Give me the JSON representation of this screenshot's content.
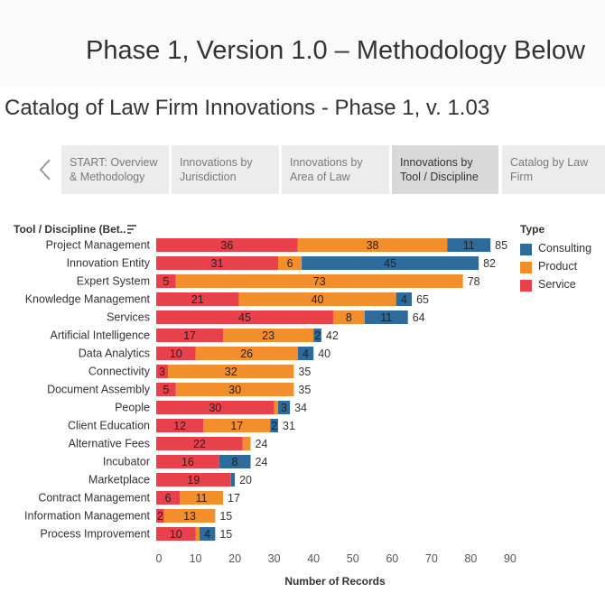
{
  "header": {
    "phase_title": "Phase 1, Version 1.0 – Methodology Below",
    "catalog_title": "Catalog of Law Firm Innovations - Phase 1, v. 1.03"
  },
  "tabs": [
    {
      "line1": "START: Overview",
      "line2": "& Methodology",
      "active": false
    },
    {
      "line1": "Innovations by",
      "line2": "Jurisdiction",
      "active": false
    },
    {
      "line1": "Innovations by",
      "line2": "Area of Law",
      "active": false
    },
    {
      "line1": "Innovations by",
      "line2": "Tool / Discipline",
      "active": true
    },
    {
      "line1": "Catalog by Law",
      "line2": "Firm",
      "active": false
    }
  ],
  "legend": {
    "title": "Type",
    "items": [
      {
        "label": "Consulting",
        "color": "#2f6b9a"
      },
      {
        "label": "Product",
        "color": "#f28e2b"
      },
      {
        "label": "Service",
        "color": "#e8414b"
      }
    ]
  },
  "chart_data": {
    "type": "bar",
    "orientation": "horizontal",
    "stacked": true,
    "row_header": "Tool / Discipline (Bet..",
    "xlabel": "Number of Records",
    "xlim": [
      0,
      90
    ],
    "xticks": [
      0,
      10,
      20,
      30,
      40,
      50,
      60,
      70,
      80,
      90
    ],
    "categories": [
      "Project Management",
      "Innovation Entity",
      "Expert System",
      "Knowledge Management",
      "Services",
      "Artificial Intelligence",
      "Data Analytics",
      "Connectivity",
      "Document Assembly",
      "People",
      "Client Education",
      "Alternative Fees",
      "Incubator",
      "Marketplace",
      "Contract Management",
      "Information Management",
      "Process Improvement"
    ],
    "series": [
      {
        "name": "Service",
        "color": "#e8414b",
        "values": [
          36,
          31,
          5,
          21,
          45,
          17,
          10,
          3,
          5,
          30,
          12,
          22,
          16,
          19,
          6,
          2,
          10
        ]
      },
      {
        "name": "Product",
        "color": "#f28e2b",
        "values": [
          38,
          6,
          73,
          40,
          8,
          23,
          26,
          32,
          30,
          1,
          17,
          2,
          0,
          0,
          11,
          13,
          1
        ]
      },
      {
        "name": "Consulting",
        "color": "#2f6b9a",
        "values": [
          11,
          45,
          0,
          4,
          11,
          2,
          4,
          0,
          0,
          3,
          2,
          0,
          8,
          1,
          0,
          0,
          4
        ]
      }
    ],
    "totals": [
      85,
      82,
      78,
      65,
      64,
      42,
      40,
      35,
      35,
      34,
      31,
      24,
      24,
      20,
      17,
      15,
      15
    ],
    "segment_labels": [
      [
        "36",
        "38",
        "11"
      ],
      [
        "31",
        "6",
        "45"
      ],
      [
        "5",
        "73",
        ""
      ],
      [
        "21",
        "40",
        "4"
      ],
      [
        "45",
        "8",
        "11"
      ],
      [
        "17",
        "23",
        "2"
      ],
      [
        "10",
        "26",
        "4"
      ],
      [
        "3",
        "32",
        ""
      ],
      [
        "5",
        "30",
        ""
      ],
      [
        "30",
        "",
        "3"
      ],
      [
        "12",
        "17",
        "2"
      ],
      [
        "22",
        "",
        ""
      ],
      [
        "16",
        "",
        "8"
      ],
      [
        "19",
        "",
        ""
      ],
      [
        "6",
        "11",
        ""
      ],
      [
        "2",
        "13",
        ""
      ],
      [
        "10",
        "",
        "4"
      ]
    ]
  }
}
